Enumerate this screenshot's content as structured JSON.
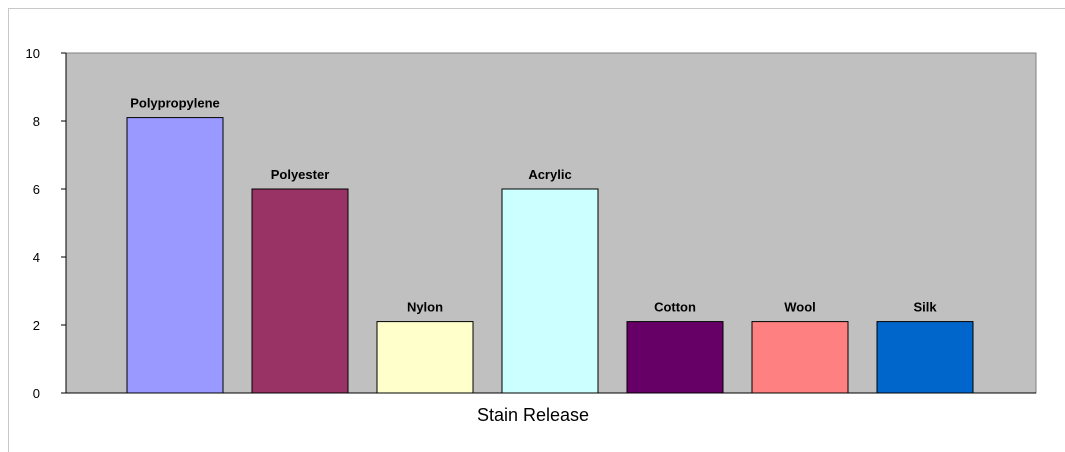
{
  "chart_data": {
    "type": "bar",
    "title": "",
    "xlabel": "Stain Release",
    "ylabel": "",
    "ylim": [
      0,
      10
    ],
    "yticks": [
      0,
      2,
      4,
      6,
      8,
      10
    ],
    "grid": false,
    "legend": "none",
    "plot_background": "#c0c0c0",
    "categories": [
      "Polypropylene",
      "Polyester",
      "Nylon",
      "Acrylic",
      "Cotton",
      "Wool",
      "Silk"
    ],
    "values": [
      8.1,
      6.0,
      2.1,
      6.0,
      2.1,
      2.1,
      2.1
    ],
    "colors": [
      "#9999ff",
      "#993366",
      "#ffffcc",
      "#ccffff",
      "#660066",
      "#ff8080",
      "#0066cc"
    ]
  }
}
